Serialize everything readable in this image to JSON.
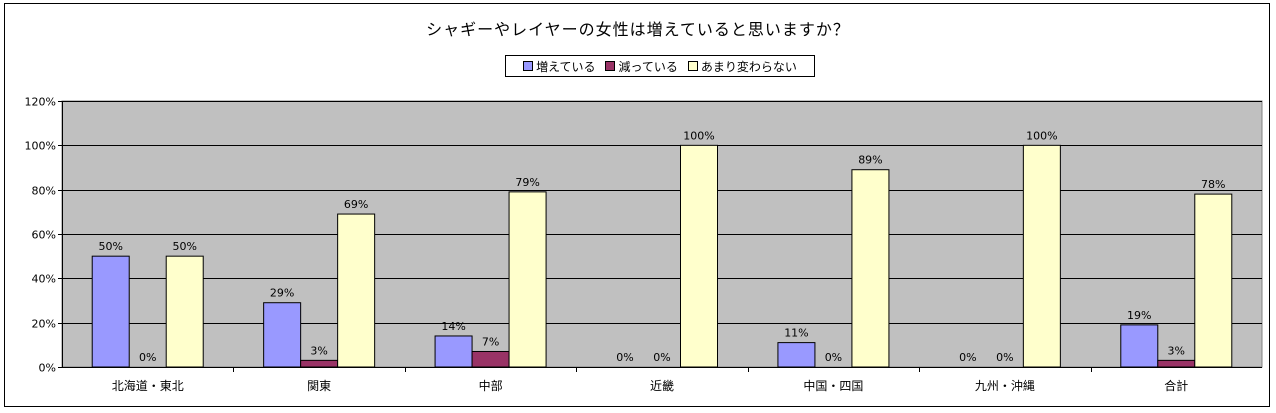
{
  "chart_data": {
    "type": "bar",
    "title": "シャギーやレイヤーの女性は増えていると思いますか？",
    "categories": [
      "北海道・東北",
      "関東",
      "中部",
      "近畿",
      "中国・四国",
      "九州・沖縄",
      "合計"
    ],
    "series": [
      {
        "name": "増えている",
        "color": "#9999ff",
        "values": [
          50,
          29,
          14,
          0,
          11,
          0,
          19
        ],
        "labels": [
          "50%",
          "29%",
          "14%",
          "0%",
          "11%",
          "0%",
          "19%"
        ]
      },
      {
        "name": "減っている",
        "color": "#993366",
        "values": [
          0,
          3,
          7,
          0,
          0,
          0,
          3
        ],
        "labels": [
          "0%",
          "3%",
          "7%",
          "0%",
          "0%",
          "0%",
          "3%"
        ]
      },
      {
        "name": "あまり変わらない",
        "color": "#ffffcc",
        "values": [
          50,
          69,
          79,
          100,
          89,
          100,
          78
        ],
        "labels": [
          "50%",
          "69%",
          "79%",
          "100%",
          "89%",
          "100%",
          "78%"
        ]
      }
    ],
    "y_ticks": [
      "0%",
      "20%",
      "40%",
      "60%",
      "80%",
      "100%",
      "120%"
    ],
    "ylim": [
      0,
      120
    ],
    "grid": true,
    "legend_position": "top",
    "plot_background": "#c0c0c0"
  }
}
